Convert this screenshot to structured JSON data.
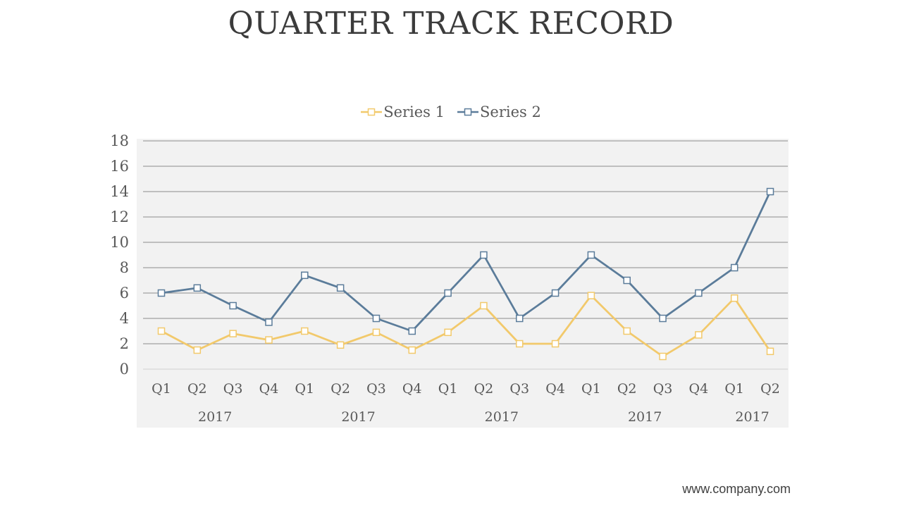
{
  "slide": {
    "title": "QUARTER TRACK RECORD",
    "footer_url": "www.company.com"
  },
  "colors": {
    "series1": "#f2c96b",
    "series2": "#5b7c9a",
    "plot_bg": "#f2f2f2",
    "grid": "#8c8c8c",
    "tick_text": "#595959"
  },
  "chart_data": {
    "type": "line",
    "title": "",
    "xlabel": "",
    "ylabel": "",
    "ylim": [
      0,
      18
    ],
    "yticks": [
      0,
      2,
      4,
      6,
      8,
      10,
      12,
      14,
      16,
      18
    ],
    "grid": true,
    "legend_position": "top",
    "categories": [
      "Q1",
      "Q2",
      "Q3",
      "Q4",
      "Q1",
      "Q2",
      "Q3",
      "Q4",
      "Q1",
      "Q2",
      "Q3",
      "Q4",
      "Q1",
      "Q2",
      "Q3",
      "Q4",
      "Q1",
      "Q2"
    ],
    "groups": [
      {
        "label": "2017",
        "span": 4
      },
      {
        "label": "2017",
        "span": 4
      },
      {
        "label": "2017",
        "span": 4
      },
      {
        "label": "2017",
        "span": 4
      },
      {
        "label": "2017",
        "span": 2
      }
    ],
    "series": [
      {
        "name": "Series 1",
        "values": [
          3,
          1.5,
          2.8,
          2.3,
          3,
          1.9,
          2.9,
          1.5,
          2.9,
          5,
          2,
          2,
          5.8,
          3,
          1,
          2.7,
          5.6,
          1.4
        ]
      },
      {
        "name": "Series 2",
        "values": [
          6,
          6.4,
          5,
          3.7,
          7.4,
          6.4,
          4,
          3,
          6,
          9,
          4,
          6,
          9,
          7,
          4,
          6,
          8,
          14
        ]
      }
    ]
  }
}
